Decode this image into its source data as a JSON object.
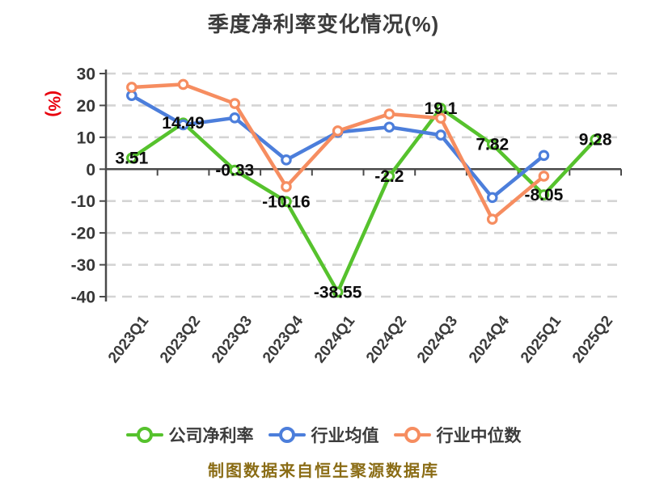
{
  "title": "季度净利率变化情况(%)",
  "y_axis_unit": "(%)",
  "caption": "制图数据来自恒生聚源数据库",
  "colors": {
    "company_green": "#56c22d",
    "industry_avg_blue": "#4c7edb",
    "industry_median_orange": "#f68d60",
    "axis_line": "#4a4a4a",
    "gridline": "#d4d4d4",
    "title_text": "#3c3c3c",
    "tick_text": "#363636",
    "value_label_text": "#0d0d0d",
    "unit_text": "#e8000d",
    "caption_text": "#8a6c15"
  },
  "legend": [
    {
      "label": "公司净利率",
      "color": "#56c22d"
    },
    {
      "label": "行业均值",
      "color": "#4c7edb"
    },
    {
      "label": "行业中位数",
      "color": "#f68d60"
    }
  ],
  "chart_data": {
    "type": "line",
    "title": "季度净利率变化情况(%)",
    "categories": [
      "2023Q1",
      "2023Q2",
      "2023Q3",
      "2023Q4",
      "2024Q1",
      "2024Q2",
      "2024Q3",
      "2024Q4",
      "2025Q1",
      "2025Q2"
    ],
    "series": [
      {
        "name": "公司净利率",
        "color": "#56c22d",
        "values": [
          3.51,
          14.49,
          -0.33,
          -10.16,
          -38.55,
          -2.2,
          19.1,
          7.82,
          -8.05,
          9.28
        ],
        "labels": [
          "3.51",
          "14.49",
          "-0.33",
          "-10.16",
          "-38.55",
          "-2.2",
          "19.1",
          "7.82",
          "-8.05",
          "9.28"
        ],
        "show_labels": true
      },
      {
        "name": "行业均值",
        "color": "#4c7edb",
        "values": [
          23.1,
          13.9,
          16.1,
          2.9,
          11.6,
          13.2,
          10.7,
          -8.9,
          4.3,
          null
        ],
        "show_labels": false
      },
      {
        "name": "行业中位数",
        "color": "#f68d60",
        "values": [
          25.7,
          26.6,
          20.6,
          -5.5,
          12.0,
          17.3,
          16.0,
          -15.7,
          -2.2,
          null
        ],
        "show_labels": false
      }
    ],
    "ylim": [
      -40,
      30
    ],
    "yticks": [
      30,
      20,
      10,
      0,
      -10,
      -20,
      -30,
      -40
    ],
    "grid": "horizontal-dashed",
    "legend_position": "bottom",
    "marker": "circle-white-fill"
  }
}
